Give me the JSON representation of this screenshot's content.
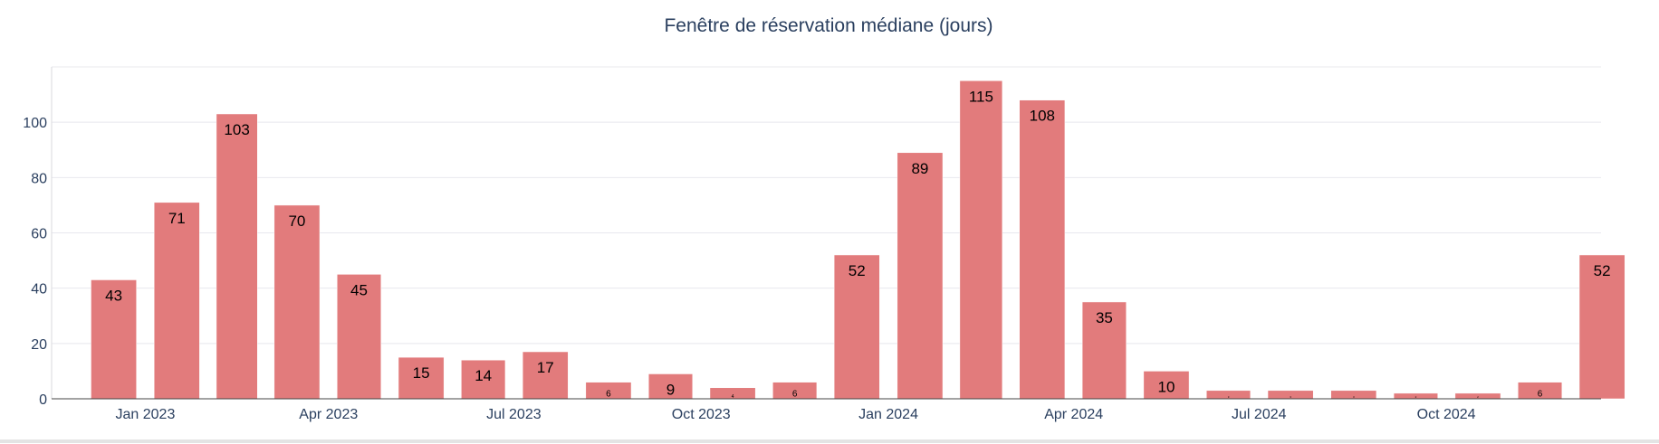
{
  "chart_data": {
    "type": "bar",
    "title": "Fenêtre de réservation médiane (jours)",
    "xlabel": "",
    "ylabel": "",
    "ylim": [
      0,
      120
    ],
    "y_ticks": [
      0,
      20,
      40,
      60,
      80,
      100
    ],
    "y_tick_labels": [
      "0",
      "20",
      "40",
      "60",
      "80",
      "100"
    ],
    "x_tick_labels": [
      {
        "label": "Jan 2023",
        "date": "2023-01-01"
      },
      {
        "label": "Apr 2023",
        "date": "2023-04-01"
      },
      {
        "label": "Jul 2023",
        "date": "2023-07-01"
      },
      {
        "label": "Oct 2023",
        "date": "2023-10-01"
      },
      {
        "label": "Jan 2024",
        "date": "2024-01-01"
      },
      {
        "label": "Apr 2024",
        "date": "2024-04-01"
      },
      {
        "label": "Jul 2024",
        "date": "2024-07-01"
      },
      {
        "label": "Oct 2024",
        "date": "2024-10-01"
      }
    ],
    "bar_color": "#e27b7c",
    "grid": true,
    "x": [
      "2022-12",
      "2023-01",
      "2023-02",
      "2023-03",
      "2023-04",
      "2023-05",
      "2023-06",
      "2023-07",
      "2023-08",
      "2023-09",
      "2023-10",
      "2023-11",
      "2023-12",
      "2024-01",
      "2024-02",
      "2024-03",
      "2024-04",
      "2024-05",
      "2024-06",
      "2024-07",
      "2024-08",
      "2024-09",
      "2024-10",
      "2024-11",
      "2024-12"
    ],
    "values": [
      43,
      71,
      103,
      70,
      45,
      15,
      14,
      17,
      6,
      9,
      4,
      6,
      52,
      89,
      115,
      108,
      35,
      10,
      3,
      3,
      3,
      2,
      2,
      6,
      52
    ],
    "labels": [
      "43",
      "71",
      "103",
      "70",
      "45",
      "15",
      "14",
      "17",
      "6",
      "9",
      "4",
      "6",
      "52",
      "89",
      "115",
      "108",
      "35",
      "10",
      "3",
      "3",
      "3",
      "2",
      "2",
      "6",
      "52"
    ]
  }
}
